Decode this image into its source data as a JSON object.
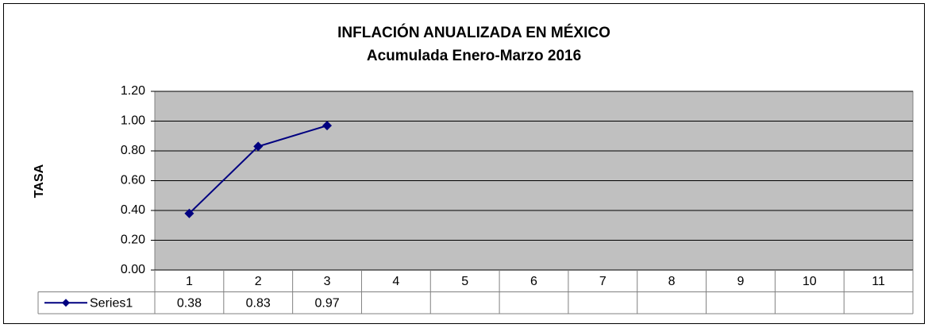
{
  "chart_data": {
    "type": "line",
    "title": "INFLACIÓN ANUALIZADA EN MÉXICO",
    "subtitle": "Acumulada Enero-Marzo 2016",
    "y_label": "TASA",
    "categories": [
      "1",
      "2",
      "3",
      "4",
      "5",
      "6",
      "7",
      "8",
      "9",
      "10",
      "11"
    ],
    "series": [
      {
        "name": "Series1",
        "color": "#000080",
        "values": [
          0.38,
          0.83,
          0.97,
          null,
          null,
          null,
          null,
          null,
          null,
          null,
          null
        ]
      }
    ],
    "ylim": [
      0,
      1.2
    ],
    "yticks": [
      {
        "value": 0,
        "label": "0.00"
      },
      {
        "value": 0.2,
        "label": "0.20"
      },
      {
        "value": 0.4,
        "label": "0.40"
      },
      {
        "value": 0.6,
        "label": "0.60"
      },
      {
        "value": 0.8,
        "label": "0.80"
      },
      {
        "value": 1,
        "label": "1.00"
      },
      {
        "value": 1.2,
        "label": "1.20"
      }
    ],
    "grid": true,
    "plot_background": "#c0c0c0"
  }
}
